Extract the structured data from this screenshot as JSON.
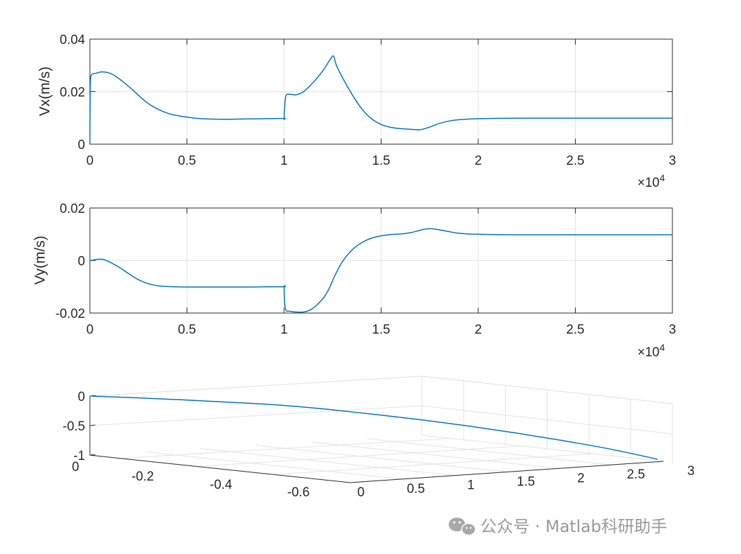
{
  "colors": {
    "line": "#0072BD",
    "axis": "#262626",
    "grid": "#e3e3e3",
    "watermark": "#9a9a9a"
  },
  "watermark": {
    "icon": "wechat-icon",
    "text": "公众号 · Matlab科研助手"
  },
  "chart_data": [
    {
      "type": "line",
      "ylabel": "Vx(m/s)",
      "xlim": [
        0,
        3
      ],
      "ylim": [
        0,
        0.04
      ],
      "grid": true,
      "x_ticks": [
        0,
        0.5,
        1,
        1.5,
        2,
        2.5,
        3
      ],
      "x_tick_labels": [
        "0",
        "0.5",
        "1",
        "1.5",
        "2",
        "2.5",
        "3"
      ],
      "y_ticks": [
        0,
        0.02,
        0.04
      ],
      "y_tick_labels": [
        "0",
        "0.02",
        "0.04"
      ],
      "x_multiplier": {
        "base": "×10",
        "exponent": "4"
      },
      "series": [
        {
          "x": [
            0,
            0.001,
            0.003,
            0.01,
            0.03,
            0.06,
            0.09,
            0.13,
            0.2,
            0.3,
            0.4,
            0.5,
            0.6,
            0.7,
            0.8,
            0.9,
            0.999,
            1.0,
            1.003,
            1.01,
            1.03,
            1.06,
            1.1,
            1.15,
            1.2,
            1.24,
            1.255,
            1.27,
            1.3,
            1.35,
            1.4,
            1.45,
            1.5,
            1.55,
            1.6,
            1.65,
            1.7,
            1.75,
            1.8,
            1.85,
            1.9,
            2.0,
            2.2,
            2.5,
            2.8,
            3.0
          ],
          "y": [
            0,
            0.012,
            0.024,
            0.0265,
            0.027,
            0.0275,
            0.0273,
            0.026,
            0.022,
            0.0155,
            0.0118,
            0.0103,
            0.0096,
            0.0095,
            0.0096,
            0.0097,
            0.0098,
            0.0098,
            0.014,
            0.0185,
            0.019,
            0.0188,
            0.02,
            0.0235,
            0.028,
            0.0325,
            0.0335,
            0.03,
            0.0255,
            0.019,
            0.0135,
            0.0097,
            0.0075,
            0.0064,
            0.0059,
            0.0057,
            0.0055,
            0.0065,
            0.0079,
            0.0088,
            0.0093,
            0.0097,
            0.0099,
            0.0099,
            0.0099,
            0.0099
          ]
        }
      ]
    },
    {
      "type": "line",
      "ylabel": "Vy(m/s)",
      "xlim": [
        0,
        3
      ],
      "ylim": [
        -0.02,
        0.02
      ],
      "grid": true,
      "x_ticks": [
        0,
        0.5,
        1,
        1.5,
        2,
        2.5,
        3
      ],
      "x_tick_labels": [
        "0",
        "0.5",
        "1",
        "1.5",
        "2",
        "2.5",
        "3"
      ],
      "y_ticks": [
        -0.02,
        0,
        0.02
      ],
      "y_tick_labels": [
        "-0.02",
        "0",
        "0.02"
      ],
      "x_multiplier": {
        "base": "×10",
        "exponent": "4"
      },
      "series": [
        {
          "x": [
            0,
            0.02,
            0.04,
            0.07,
            0.1,
            0.15,
            0.2,
            0.25,
            0.3,
            0.35,
            0.4,
            0.5,
            0.6,
            0.7,
            0.8,
            0.9,
            0.999,
            1.0,
            1.003,
            1.01,
            1.03,
            1.06,
            1.1,
            1.13,
            1.16,
            1.2,
            1.23,
            1.26,
            1.3,
            1.35,
            1.4,
            1.45,
            1.5,
            1.55,
            1.6,
            1.65,
            1.7,
            1.73,
            1.76,
            1.8,
            1.85,
            1.9,
            2.0,
            2.2,
            2.5,
            2.8,
            3.0
          ],
          "y": [
            0,
            0.0002,
            0.0005,
            0.0004,
            -0.0005,
            -0.0025,
            -0.005,
            -0.0073,
            -0.0088,
            -0.0096,
            -0.0099,
            -0.0101,
            -0.0101,
            -0.0101,
            -0.0101,
            -0.01,
            -0.01,
            -0.01,
            -0.016,
            -0.019,
            -0.0193,
            -0.0196,
            -0.0196,
            -0.019,
            -0.0175,
            -0.0145,
            -0.011,
            -0.006,
            -0.0005,
            0.004,
            0.0068,
            0.0085,
            0.0094,
            0.0099,
            0.0101,
            0.0106,
            0.0115,
            0.012,
            0.0121,
            0.0117,
            0.011,
            0.0104,
            0.01,
            0.0098,
            0.0098,
            0.0098,
            0.0098
          ]
        }
      ]
    },
    {
      "type": "line3d",
      "zlim": [
        -1,
        0
      ],
      "grid": true,
      "x_tick_labels": [
        "0",
        "0.5",
        "1",
        "1.5",
        "2",
        "2.5",
        "3"
      ],
      "y_tick_labels": [
        "0",
        "-0.2",
        "-0.4",
        "-0.6"
      ],
      "z_tick_labels": [
        "0",
        "-0.5",
        "-1"
      ],
      "series": [
        {
          "x": [
            0,
            0.25,
            0.5,
            0.75,
            1.0,
            1.25,
            1.5,
            1.75,
            2.0,
            2.25,
            2.5,
            2.75,
            3.0
          ],
          "y": [
            0,
            -0.03,
            -0.08,
            -0.12,
            -0.17,
            -0.24,
            -0.32,
            -0.4,
            -0.47,
            -0.53,
            -0.58,
            -0.62,
            -0.64
          ],
          "z": [
            0,
            -0.05,
            -0.1,
            -0.15,
            -0.2,
            -0.27,
            -0.35,
            -0.43,
            -0.52,
            -0.62,
            -0.73,
            -0.85,
            -1.0
          ]
        }
      ]
    }
  ]
}
